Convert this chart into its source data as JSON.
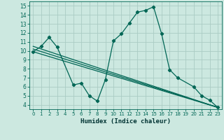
{
  "xlabel": "Humidex (Indice chaleur)",
  "xlim": [
    -0.5,
    23.5
  ],
  "ylim": [
    3.5,
    15.5
  ],
  "xticks": [
    0,
    1,
    2,
    3,
    4,
    5,
    6,
    7,
    8,
    9,
    10,
    11,
    12,
    13,
    14,
    15,
    16,
    17,
    18,
    19,
    20,
    21,
    22,
    23
  ],
  "yticks": [
    4,
    5,
    6,
    7,
    8,
    9,
    10,
    11,
    12,
    13,
    14,
    15
  ],
  "bg_color": "#cce8e0",
  "grid_color": "#aaccc4",
  "line_color": "#006655",
  "series1_x": [
    0,
    1,
    2,
    3,
    5,
    6,
    7,
    8,
    9,
    10,
    11,
    12,
    13,
    14,
    15,
    16,
    17,
    18,
    20,
    21,
    22,
    23
  ],
  "series1_y": [
    9.9,
    10.5,
    11.5,
    10.4,
    6.2,
    6.4,
    5.0,
    4.4,
    6.8,
    11.1,
    11.9,
    13.1,
    14.3,
    14.5,
    14.9,
    11.9,
    7.9,
    7.0,
    6.0,
    5.0,
    4.5,
    3.7
  ],
  "series2_x": [
    0,
    23
  ],
  "series2_y": [
    9.9,
    3.7
  ],
  "series3_x": [
    0,
    23
  ],
  "series3_y": [
    10.2,
    3.7
  ],
  "series4_x": [
    0,
    23
  ],
  "series4_y": [
    10.5,
    3.7
  ]
}
